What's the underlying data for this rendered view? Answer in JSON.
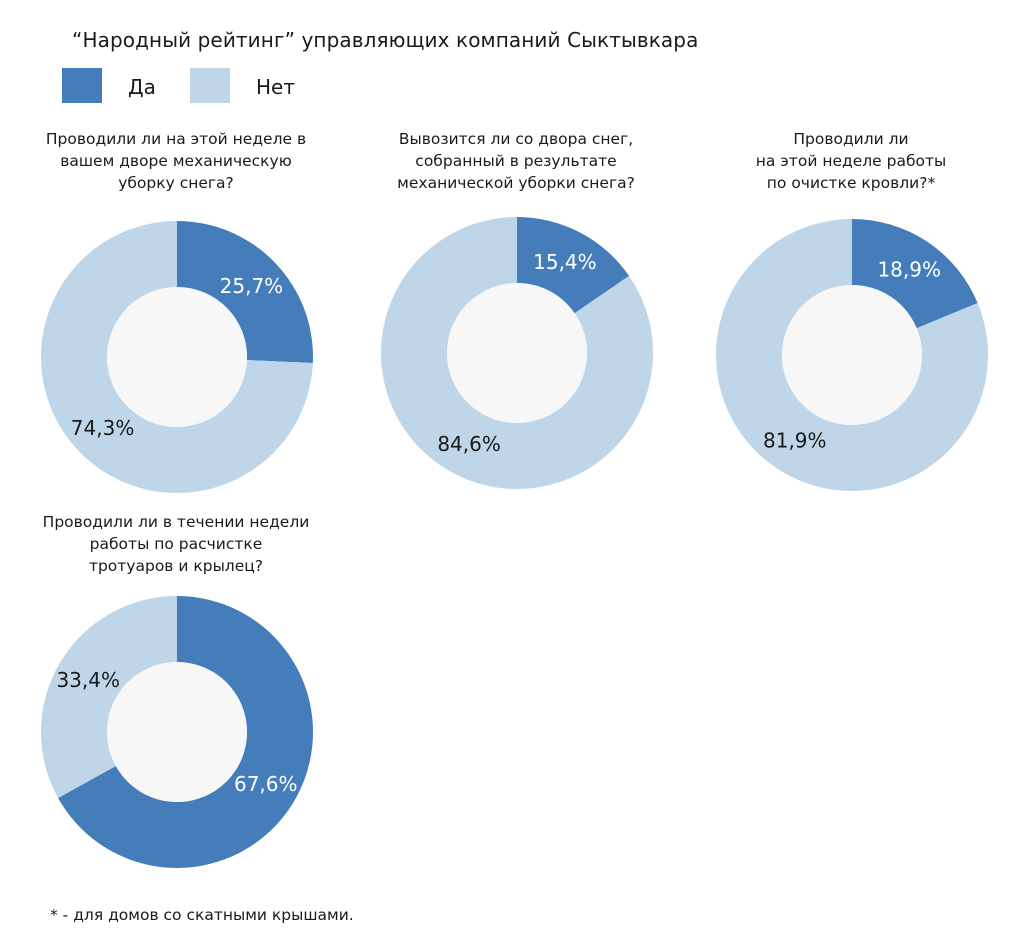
{
  "title": "“Народный рейтинг” управляющих компаний Сыктывкара",
  "colors": {
    "yes": "#457dba",
    "no": "#bfd5e8",
    "hole": "#f7f7f7",
    "label_on_dark": "#ffffff",
    "label_on_light": "#1a1a1a"
  },
  "legend": [
    {
      "label": "Да",
      "color": "#457dba"
    },
    {
      "label": "Нет",
      "color": "#bfd5e8"
    }
  ],
  "chart_data": [
    {
      "type": "pie",
      "title_lines": [
        "Проводили ли на этой неделе в",
        "вашем дворе механическую",
        "уборку снега?"
      ],
      "categories": [
        "Да",
        "Нет"
      ],
      "values": [
        25.7,
        74.3
      ],
      "labels": [
        "25,7%",
        "74,3%"
      ],
      "start_angle_deg": 0,
      "direction": "clockwise"
    },
    {
      "type": "pie",
      "title_lines": [
        "Вывозится ли со двора снег,",
        "собранный в результате",
        "механической  уборки снега?"
      ],
      "categories": [
        "Да",
        "Нет"
      ],
      "values": [
        15.4,
        84.6
      ],
      "labels": [
        "15,4%",
        "84,6%"
      ],
      "start_angle_deg": 0,
      "direction": "clockwise"
    },
    {
      "type": "pie",
      "title_lines": [
        "Проводили ли",
        "на этой неделе работы",
        "по очистке кровли?*"
      ],
      "categories": [
        "Да",
        "Нет"
      ],
      "values": [
        18.9,
        81.9
      ],
      "labels": [
        "18,9%",
        "81,9%"
      ],
      "start_angle_deg": 0,
      "direction": "clockwise"
    },
    {
      "type": "pie",
      "title_lines": [
        "Проводили ли в течении  недели",
        "работы по расчистке",
        "тротуаров и крылец?"
      ],
      "categories": [
        "Да",
        "Нет"
      ],
      "values": [
        67.6,
        33.4
      ],
      "labels": [
        "67,6%",
        "33,4%"
      ],
      "start_angle_deg": 0,
      "direction": "clockwise"
    }
  ],
  "footnote": "* - для домов со скатными крышами."
}
